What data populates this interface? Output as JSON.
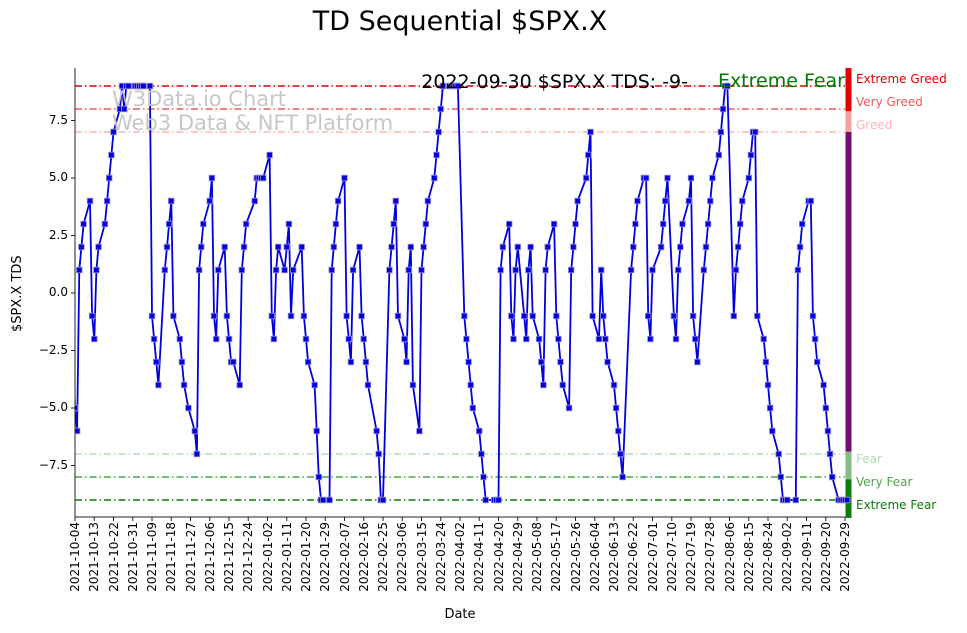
{
  "title": "TD Sequential $SPX.X",
  "annotation": {
    "text": "2022-09-30 $SPX.X TDS: -9-",
    "status": "Extreme Fear",
    "status_color": "#007a00"
  },
  "watermark": {
    "line1": "W3Data.io Chart",
    "line2": "Web3 Data & NFT Platform"
  },
  "axes": {
    "ylabel": "$SPX.X TDS",
    "xlabel": "Date"
  },
  "chart_data": {
    "type": "line",
    "title": "TD Sequential $SPX.X",
    "xlabel": "Date",
    "ylabel": "$SPX.X TDS",
    "ylim": [
      -9.78,
      9.78
    ],
    "grid": false,
    "legend": "none",
    "line_color": "#0000dd",
    "marker": "square",
    "ytick_values": [
      7.5,
      5.0,
      2.5,
      0.0,
      -2.5,
      -5.0,
      -7.5
    ],
    "ytick_labels": [
      "7.5",
      "5.0",
      "2.5",
      "0.0",
      "−2.5",
      "−5.0",
      "−7.5"
    ],
    "xtick_labels": [
      "2021-10-04",
      "2021-10-13",
      "2021-10-22",
      "2021-10-31",
      "2021-11-09",
      "2021-11-18",
      "2021-11-27",
      "2021-12-06",
      "2021-12-15",
      "2021-12-24",
      "2022-01-02",
      "2022-01-11",
      "2022-01-20",
      "2022-01-29",
      "2022-02-07",
      "2022-02-16",
      "2022-02-25",
      "2022-03-06",
      "2022-03-15",
      "2022-03-24",
      "2022-04-02",
      "2022-04-11",
      "2022-04-20",
      "2022-04-29",
      "2022-05-08",
      "2022-05-17",
      "2022-05-26",
      "2022-06-04",
      "2022-06-13",
      "2022-06-22",
      "2022-07-01",
      "2022-07-10",
      "2022-07-19",
      "2022-07-28",
      "2022-08-06",
      "2022-08-15",
      "2022-08-24",
      "2022-09-02",
      "2022-09-11",
      "2022-09-20",
      "2022-09-29"
    ],
    "reference_lines": [
      {
        "value": 9,
        "label": "Extreme Greed",
        "color": "#e00000",
        "label_color": "#e00000"
      },
      {
        "value": 8,
        "label": "Very Greed",
        "color": "#f05a5a",
        "label_color": "#f05a5a"
      },
      {
        "value": 7,
        "label": "Greed",
        "color": "#ffb5b5",
        "label_color": "#ffb5b5"
      },
      {
        "value": -7,
        "label": "Fear",
        "color": "#b5dcb5",
        "label_color": "#b5dcb5"
      },
      {
        "value": -8,
        "label": "Very Fear",
        "color": "#4da34d",
        "label_color": "#4da34d"
      },
      {
        "value": -9,
        "label": "Extreme Fear",
        "color": "#0b7d0b",
        "label_color": "#0b7d0b"
      }
    ],
    "colorbar": [
      {
        "top_value": 9.78,
        "bottom_value": 7.9,
        "color": "#e00000"
      },
      {
        "top_value": 7.9,
        "bottom_value": 7.0,
        "color": "#f2a0a0"
      },
      {
        "top_value": 7.0,
        "bottom_value": -6.9,
        "color": "#70106e"
      },
      {
        "top_value": -6.9,
        "bottom_value": -8.1,
        "color": "#85bb85"
      },
      {
        "top_value": -8.1,
        "bottom_value": -9.78,
        "color": "#0c7c0c"
      }
    ],
    "series": [
      {
        "name": "$SPX.X TDS",
        "color": "#0000dd",
        "points": [
          [
            "2021-10-01",
            2
          ],
          [
            "2021-10-04",
            -5
          ],
          [
            "2021-10-05",
            -6
          ],
          [
            "2021-10-06",
            1
          ],
          [
            "2021-10-07",
            2
          ],
          [
            "2021-10-08",
            3
          ],
          [
            "2021-10-11",
            4
          ],
          [
            "2021-10-12",
            -1
          ],
          [
            "2021-10-13",
            -2
          ],
          [
            "2021-10-14",
            1
          ],
          [
            "2021-10-15",
            2
          ],
          [
            "2021-10-18",
            3
          ],
          [
            "2021-10-19",
            4
          ],
          [
            "2021-10-20",
            5
          ],
          [
            "2021-10-21",
            6
          ],
          [
            "2021-10-22",
            7
          ],
          [
            "2021-10-25",
            8
          ],
          [
            "2021-10-26",
            9
          ],
          [
            "2021-10-27",
            8
          ],
          [
            "2021-10-28",
            9
          ],
          [
            "2021-10-29",
            9
          ],
          [
            "2021-11-01",
            9
          ],
          [
            "2021-11-02",
            9
          ],
          [
            "2021-11-03",
            9
          ],
          [
            "2021-11-04",
            9
          ],
          [
            "2021-11-05",
            9
          ],
          [
            "2021-11-08",
            9
          ],
          [
            "2021-11-09",
            -1
          ],
          [
            "2021-11-10",
            -2
          ],
          [
            "2021-11-11",
            -3
          ],
          [
            "2021-11-12",
            -4
          ],
          [
            "2021-11-15",
            1
          ],
          [
            "2021-11-16",
            2
          ],
          [
            "2021-11-17",
            3
          ],
          [
            "2021-11-18",
            4
          ],
          [
            "2021-11-19",
            -1
          ],
          [
            "2021-11-22",
            -2
          ],
          [
            "2021-11-23",
            -3
          ],
          [
            "2021-11-24",
            -4
          ],
          [
            "2021-11-26",
            -5
          ],
          [
            "2021-11-29",
            -6
          ],
          [
            "2021-11-30",
            -7
          ],
          [
            "2021-12-01",
            1
          ],
          [
            "2021-12-02",
            2
          ],
          [
            "2021-12-03",
            3
          ],
          [
            "2021-12-06",
            4
          ],
          [
            "2021-12-07",
            5
          ],
          [
            "2021-12-08",
            -1
          ],
          [
            "2021-12-09",
            -2
          ],
          [
            "2021-12-10",
            1
          ],
          [
            "2021-12-13",
            2
          ],
          [
            "2021-12-14",
            -1
          ],
          [
            "2021-12-15",
            -2
          ],
          [
            "2021-12-16",
            -3
          ],
          [
            "2021-12-17",
            -3
          ],
          [
            "2021-12-20",
            -4
          ],
          [
            "2021-12-21",
            1
          ],
          [
            "2021-12-22",
            2
          ],
          [
            "2021-12-23",
            3
          ],
          [
            "2021-12-27",
            4
          ],
          [
            "2021-12-28",
            5
          ],
          [
            "2021-12-29",
            5
          ],
          [
            "2021-12-30",
            5
          ],
          [
            "2021-12-31",
            5
          ],
          [
            "2022-01-03",
            6
          ],
          [
            "2022-01-04",
            -1
          ],
          [
            "2022-01-05",
            -2
          ],
          [
            "2022-01-06",
            1
          ],
          [
            "2022-01-07",
            2
          ],
          [
            "2022-01-10",
            1
          ],
          [
            "2022-01-11",
            2
          ],
          [
            "2022-01-12",
            3
          ],
          [
            "2022-01-13",
            -1
          ],
          [
            "2022-01-14",
            1
          ],
          [
            "2022-01-18",
            2
          ],
          [
            "2022-01-19",
            -1
          ],
          [
            "2022-01-20",
            -2
          ],
          [
            "2022-01-21",
            -3
          ],
          [
            "2022-01-24",
            -4
          ],
          [
            "2022-01-25",
            -6
          ],
          [
            "2022-01-26",
            -8
          ],
          [
            "2022-01-27",
            -9
          ],
          [
            "2022-01-28",
            -9
          ],
          [
            "2022-01-31",
            -9
          ],
          [
            "2022-02-01",
            1
          ],
          [
            "2022-02-02",
            2
          ],
          [
            "2022-02-03",
            3
          ],
          [
            "2022-02-04",
            4
          ],
          [
            "2022-02-07",
            5
          ],
          [
            "2022-02-08",
            -1
          ],
          [
            "2022-02-09",
            -2
          ],
          [
            "2022-02-10",
            -3
          ],
          [
            "2022-02-11",
            1
          ],
          [
            "2022-02-14",
            2
          ],
          [
            "2022-02-15",
            -1
          ],
          [
            "2022-02-16",
            -2
          ],
          [
            "2022-02-17",
            -3
          ],
          [
            "2022-02-18",
            -4
          ],
          [
            "2022-02-22",
            -6
          ],
          [
            "2022-02-23",
            -7
          ],
          [
            "2022-02-24",
            -9
          ],
          [
            "2022-02-25",
            -9
          ],
          [
            "2022-02-28",
            1
          ],
          [
            "2022-03-01",
            2
          ],
          [
            "2022-03-02",
            3
          ],
          [
            "2022-03-03",
            4
          ],
          [
            "2022-03-04",
            -1
          ],
          [
            "2022-03-07",
            -2
          ],
          [
            "2022-03-08",
            -3
          ],
          [
            "2022-03-09",
            1
          ],
          [
            "2022-03-10",
            2
          ],
          [
            "2022-03-11",
            -4
          ],
          [
            "2022-03-14",
            -6
          ],
          [
            "2022-03-15",
            1
          ],
          [
            "2022-03-16",
            2
          ],
          [
            "2022-03-17",
            3
          ],
          [
            "2022-03-18",
            4
          ],
          [
            "2022-03-21",
            5
          ],
          [
            "2022-03-22",
            6
          ],
          [
            "2022-03-23",
            7
          ],
          [
            "2022-03-24",
            8
          ],
          [
            "2022-03-25",
            9
          ],
          [
            "2022-03-28",
            9
          ],
          [
            "2022-03-29",
            9
          ],
          [
            "2022-03-30",
            9
          ],
          [
            "2022-03-31",
            9
          ],
          [
            "2022-04-01",
            9
          ],
          [
            "2022-04-04",
            -1
          ],
          [
            "2022-04-05",
            -2
          ],
          [
            "2022-04-06",
            -3
          ],
          [
            "2022-04-07",
            -4
          ],
          [
            "2022-04-08",
            -5
          ],
          [
            "2022-04-11",
            -6
          ],
          [
            "2022-04-12",
            -7
          ],
          [
            "2022-04-13",
            -8
          ],
          [
            "2022-04-14",
            -9
          ],
          [
            "2022-04-18",
            -9
          ],
          [
            "2022-04-19",
            -9
          ],
          [
            "2022-04-20",
            -9
          ],
          [
            "2022-04-21",
            1
          ],
          [
            "2022-04-22",
            2
          ],
          [
            "2022-04-25",
            3
          ],
          [
            "2022-04-26",
            -1
          ],
          [
            "2022-04-27",
            -2
          ],
          [
            "2022-04-28",
            1
          ],
          [
            "2022-04-29",
            2
          ],
          [
            "2022-05-02",
            -1
          ],
          [
            "2022-05-03",
            -2
          ],
          [
            "2022-05-04",
            1
          ],
          [
            "2022-05-05",
            2
          ],
          [
            "2022-05-06",
            -1
          ],
          [
            "2022-05-09",
            -2
          ],
          [
            "2022-05-10",
            -3
          ],
          [
            "2022-05-11",
            -4
          ],
          [
            "2022-05-12",
            1
          ],
          [
            "2022-05-13",
            2
          ],
          [
            "2022-05-16",
            3
          ],
          [
            "2022-05-17",
            -1
          ],
          [
            "2022-05-18",
            -2
          ],
          [
            "2022-05-19",
            -3
          ],
          [
            "2022-05-20",
            -4
          ],
          [
            "2022-05-23",
            -5
          ],
          [
            "2022-05-24",
            1
          ],
          [
            "2022-05-25",
            2
          ],
          [
            "2022-05-26",
            3
          ],
          [
            "2022-05-27",
            4
          ],
          [
            "2022-05-31",
            5
          ],
          [
            "2022-06-01",
            6
          ],
          [
            "2022-06-02",
            7
          ],
          [
            "2022-06-03",
            -1
          ],
          [
            "2022-06-06",
            -2
          ],
          [
            "2022-06-07",
            1
          ],
          [
            "2022-06-08",
            -1
          ],
          [
            "2022-06-09",
            -2
          ],
          [
            "2022-06-10",
            -3
          ],
          [
            "2022-06-13",
            -4
          ],
          [
            "2022-06-14",
            -5
          ],
          [
            "2022-06-15",
            -6
          ],
          [
            "2022-06-16",
            -7
          ],
          [
            "2022-06-17",
            -8
          ],
          [
            "2022-06-21",
            1
          ],
          [
            "2022-06-22",
            2
          ],
          [
            "2022-06-23",
            3
          ],
          [
            "2022-06-24",
            4
          ],
          [
            "2022-06-27",
            5
          ],
          [
            "2022-06-28",
            5
          ],
          [
            "2022-06-29",
            -1
          ],
          [
            "2022-06-30",
            -2
          ],
          [
            "2022-07-01",
            1
          ],
          [
            "2022-07-05",
            2
          ],
          [
            "2022-07-06",
            3
          ],
          [
            "2022-07-07",
            4
          ],
          [
            "2022-07-08",
            5
          ],
          [
            "2022-07-11",
            -1
          ],
          [
            "2022-07-12",
            -2
          ],
          [
            "2022-07-13",
            1
          ],
          [
            "2022-07-14",
            2
          ],
          [
            "2022-07-15",
            3
          ],
          [
            "2022-07-18",
            4
          ],
          [
            "2022-07-19",
            5
          ],
          [
            "2022-07-20",
            -1
          ],
          [
            "2022-07-21",
            -2
          ],
          [
            "2022-07-22",
            -3
          ],
          [
            "2022-07-25",
            1
          ],
          [
            "2022-07-26",
            2
          ],
          [
            "2022-07-27",
            3
          ],
          [
            "2022-07-28",
            4
          ],
          [
            "2022-07-29",
            5
          ],
          [
            "2022-08-01",
            6
          ],
          [
            "2022-08-02",
            7
          ],
          [
            "2022-08-03",
            8
          ],
          [
            "2022-08-04",
            9
          ],
          [
            "2022-08-05",
            9
          ],
          [
            "2022-08-08",
            -1
          ],
          [
            "2022-08-09",
            1
          ],
          [
            "2022-08-10",
            2
          ],
          [
            "2022-08-11",
            3
          ],
          [
            "2022-08-12",
            4
          ],
          [
            "2022-08-15",
            5
          ],
          [
            "2022-08-16",
            6
          ],
          [
            "2022-08-17",
            7
          ],
          [
            "2022-08-18",
            7
          ],
          [
            "2022-08-19",
            -1
          ],
          [
            "2022-08-22",
            -2
          ],
          [
            "2022-08-23",
            -3
          ],
          [
            "2022-08-24",
            -4
          ],
          [
            "2022-08-25",
            -5
          ],
          [
            "2022-08-26",
            -6
          ],
          [
            "2022-08-29",
            -7
          ],
          [
            "2022-08-30",
            -8
          ],
          [
            "2022-08-31",
            -9
          ],
          [
            "2022-09-01",
            -9
          ],
          [
            "2022-09-02",
            -9
          ],
          [
            "2022-09-06",
            -9
          ],
          [
            "2022-09-07",
            1
          ],
          [
            "2022-09-08",
            2
          ],
          [
            "2022-09-09",
            3
          ],
          [
            "2022-09-12",
            4
          ],
          [
            "2022-09-13",
            4
          ],
          [
            "2022-09-14",
            -1
          ],
          [
            "2022-09-15",
            -2
          ],
          [
            "2022-09-16",
            -3
          ],
          [
            "2022-09-19",
            -4
          ],
          [
            "2022-09-20",
            -5
          ],
          [
            "2022-09-21",
            -6
          ],
          [
            "2022-09-22",
            -7
          ],
          [
            "2022-09-23",
            -8
          ],
          [
            "2022-09-26",
            -9
          ],
          [
            "2022-09-27",
            -9
          ],
          [
            "2022-09-28",
            -9
          ],
          [
            "2022-09-29",
            -9
          ],
          [
            "2022-09-30",
            -9
          ]
        ]
      }
    ]
  }
}
